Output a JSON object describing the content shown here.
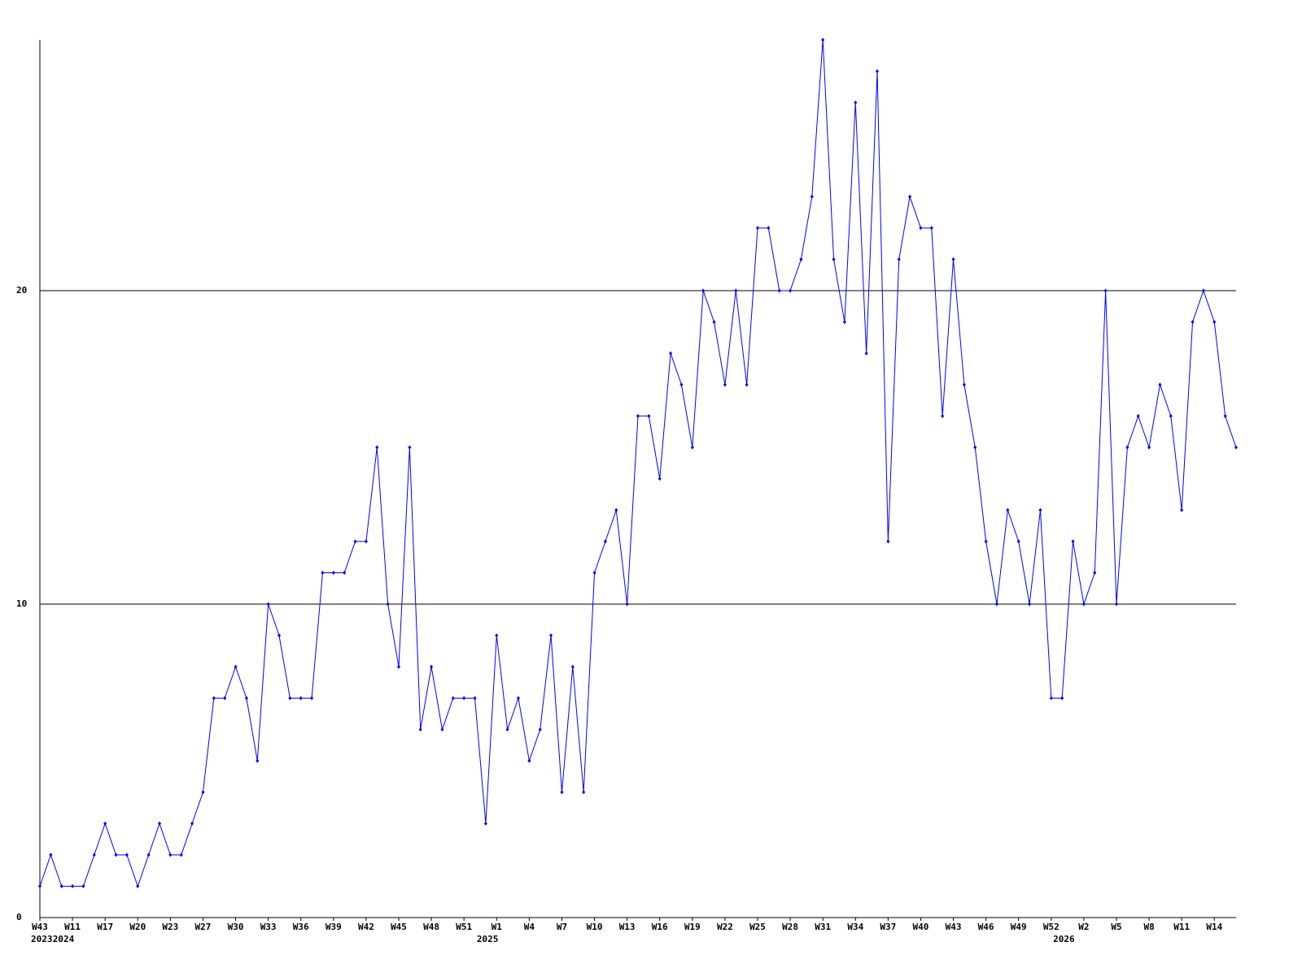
{
  "chart_data": {
    "type": "line",
    "categories": [
      "W43",
      null,
      null,
      "W11",
      null,
      null,
      "W17",
      null,
      null,
      "W20",
      null,
      null,
      "W23",
      null,
      null,
      "W27",
      null,
      null,
      "W30",
      null,
      null,
      "W33",
      null,
      null,
      "W36",
      null,
      null,
      "W39",
      null,
      null,
      "W42",
      null,
      null,
      "W45",
      null,
      null,
      "W48",
      null,
      null,
      "W51",
      null,
      null,
      "W1",
      null,
      null,
      "W4",
      null,
      null,
      "W7",
      null,
      null,
      "W10",
      null,
      null,
      "W13",
      null,
      null,
      "W16",
      null,
      null,
      "W19",
      null,
      null,
      "W22",
      null,
      null,
      "W25",
      null,
      null,
      "W28",
      null,
      null,
      "W31",
      null,
      null,
      "W34",
      null,
      null,
      "W37",
      null,
      null,
      "W40",
      null,
      null,
      "W43",
      null,
      null,
      "W46",
      null,
      null,
      "W49",
      null,
      null,
      "W52",
      null,
      null,
      "W2",
      null,
      null,
      "W5",
      null,
      null,
      "W8",
      null,
      null,
      "W11",
      null,
      null,
      "W14",
      null,
      null
    ],
    "year_labels": [
      "2023",
      null,
      "2024",
      null,
      null,
      null,
      null,
      null,
      null,
      null,
      null,
      null,
      null,
      null,
      null,
      null,
      null,
      null,
      null,
      null,
      null,
      null,
      null,
      null,
      null,
      null,
      null,
      null,
      null,
      null,
      null,
      null,
      null,
      null,
      null,
      null,
      null,
      null,
      null,
      null,
      null,
      "2025",
      null,
      null,
      null,
      null,
      null,
      null,
      null,
      null,
      null,
      null,
      null,
      null,
      null,
      null,
      null,
      null,
      null,
      null,
      null,
      null,
      null,
      null,
      null,
      null,
      null,
      null,
      null,
      null,
      null,
      null,
      null,
      null,
      null,
      null,
      null,
      null,
      null,
      null,
      null,
      null,
      null,
      null,
      null,
      null,
      null,
      null,
      null,
      null,
      null,
      null,
      null,
      null,
      "2026",
      null,
      null,
      null,
      null,
      null,
      null,
      null,
      null,
      null,
      null,
      null,
      null,
      null,
      null,
      null,
      null
    ],
    "series": [
      {
        "color": "#0000ff",
        "values": [
          1,
          2,
          1,
          1,
          1,
          2,
          3,
          2,
          2,
          1,
          2,
          3,
          2,
          2,
          3,
          4,
          7,
          7,
          8,
          7,
          5,
          10,
          9,
          7,
          7,
          7,
          11,
          11,
          11,
          12,
          12,
          15,
          10,
          8,
          15,
          6,
          8,
          6,
          7,
          7,
          7,
          3,
          9,
          6,
          7,
          5,
          6,
          9,
          4,
          8,
          4,
          11,
          12,
          13,
          10,
          16,
          16,
          14,
          18,
          17,
          15,
          20,
          19,
          17,
          20,
          17,
          22,
          22,
          20,
          20,
          21,
          23,
          28,
          21,
          19,
          26,
          18,
          27,
          12,
          21,
          23,
          22,
          22,
          16,
          21,
          17,
          15,
          12,
          10,
          13,
          12,
          10,
          13,
          7,
          7,
          12,
          10,
          11,
          20,
          10,
          15,
          16,
          15,
          17,
          16,
          13,
          19,
          20,
          19,
          16,
          15
        ]
      }
    ],
    "ylim": [
      0,
      28
    ],
    "yticks": [
      0,
      10,
      20
    ],
    "grid": true
  }
}
